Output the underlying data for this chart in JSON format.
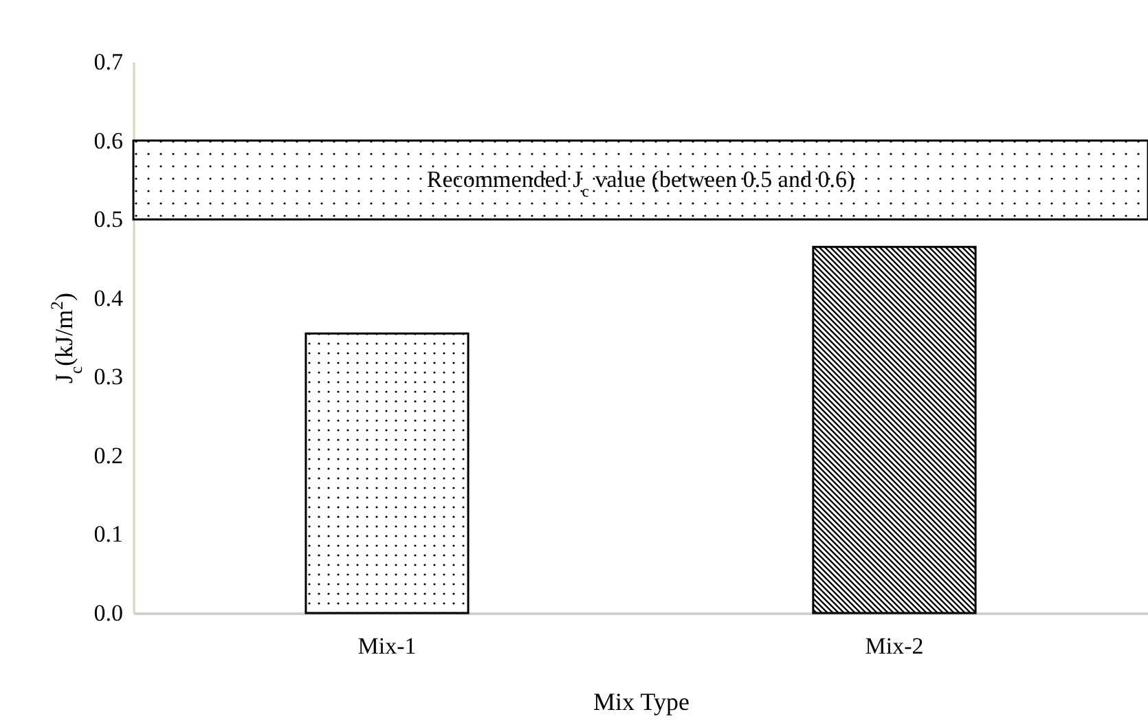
{
  "chart_data": {
    "type": "bar",
    "xlabel": "Mix Type",
    "ylabel": "J$_{c}$(kJ/m$^{2}$)",
    "categories": [
      "Mix-1",
      "Mix-2"
    ],
    "values": [
      0.355,
      0.465
    ],
    "colors": [
      "#000000",
      "#000000"
    ],
    "ylim": [
      0,
      0.7
    ],
    "yticks": [
      {
        "value": 0,
        "label": "0.0"
      },
      {
        "value": 0.1,
        "label": "0.1"
      },
      {
        "value": 0.2,
        "label": "0.2"
      },
      {
        "value": 0.3,
        "label": "0.3"
      },
      {
        "value": 0.4,
        "label": "0.4"
      },
      {
        "value": 0.5,
        "label": "0.5"
      },
      {
        "value": 0.6,
        "label": "0.6"
      },
      {
        "value": 0.7,
        "label": "0.7"
      }
    ],
    "bands": [
      {
        "axis": "y",
        "from": 0.5,
        "to": 0.6,
        "label": "Recommended J$_{c}$ value (between 0.5 and 0.6)",
        "color": "#ffffff"
      }
    ],
    "grid": false
  }
}
